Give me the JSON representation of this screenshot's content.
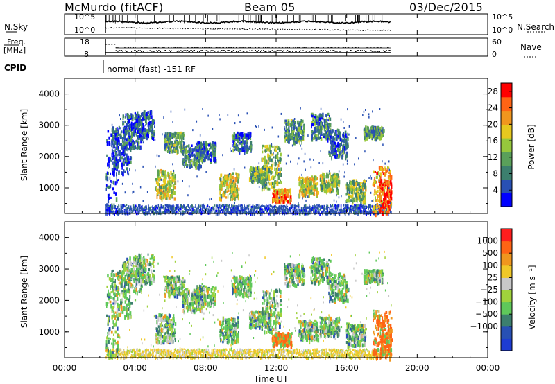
{
  "header": {
    "station": "McMurdo (fitACF)",
    "beam": "Beam 05",
    "date": "03/Dec/2015"
  },
  "status_panels": {
    "nsky_label": "N.Sky",
    "nsearch_label": "N.Search",
    "freq_label": "Freq.",
    "freq_unit": "[MHz]",
    "nave_label": "Nave",
    "cpid_label": "CPID",
    "cpid_text": "normal (fast) -151 RF",
    "noise_ticks_left": [
      "10^5",
      "10^0"
    ],
    "noise_ticks_right": [
      "10^5",
      "10^0"
    ],
    "freq_ticks": [
      "18",
      "8"
    ],
    "nave_ticks": [
      "60",
      "0"
    ]
  },
  "x_axis": {
    "label": "Time UT",
    "ticks": [
      "00:00",
      "04:00",
      "08:00",
      "12:00",
      "16:00",
      "20:00",
      "00:00"
    ]
  },
  "chart_data": [
    {
      "type": "heatmap",
      "title": "",
      "xlabel": "Time UT",
      "ylabel": "Slant Range [km]",
      "x_range_hours": [
        0,
        24
      ],
      "data_x_range_hours": [
        2.33,
        18.5
      ],
      "ylim": [
        180,
        4500
      ],
      "yticks": [
        "1000",
        "2000",
        "3000",
        "4000"
      ],
      "colorbar": {
        "label": "Power [dB]",
        "ticks": [
          "4",
          "8",
          "12",
          "16",
          "20",
          "24",
          "28"
        ],
        "range": [
          0,
          30
        ],
        "colors": [
          "#0000ff",
          "#2850b4",
          "#3c7f6e",
          "#5aa05a",
          "#96c83c",
          "#e6c81e",
          "#f0961e",
          "#ff6414",
          "#ff0000"
        ]
      },
      "echo_regions": [
        {
          "t": 2.5,
          "r": [
            250,
            2900
          ],
          "level": 0.15
        },
        {
          "t": 3.2,
          "r": [
            1500,
            3000
          ],
          "level": 0.15
        },
        {
          "t": 3.8,
          "r": [
            2300,
            3400
          ],
          "level": 0.2
        },
        {
          "t": 4.5,
          "r": [
            2600,
            3500
          ],
          "level": 0.2
        },
        {
          "t": 5.7,
          "r": [
            700,
            1600
          ],
          "level": 0.55
        },
        {
          "t": 6.2,
          "r": [
            2200,
            2800
          ],
          "level": 0.35
        },
        {
          "t": 7.2,
          "r": [
            1700,
            2400
          ],
          "level": 0.3
        },
        {
          "t": 8.0,
          "r": [
            1900,
            2500
          ],
          "level": 0.25
        },
        {
          "t": 9.3,
          "r": [
            700,
            1500
          ],
          "level": 0.55
        },
        {
          "t": 10.0,
          "r": [
            2200,
            2800
          ],
          "level": 0.25
        },
        {
          "t": 11.0,
          "r": [
            1200,
            1700
          ],
          "level": 0.4
        },
        {
          "t": 11.7,
          "r": [
            1000,
            2400
          ],
          "level": 0.45
        },
        {
          "t": 12.3,
          "r": [
            600,
            1000
          ],
          "level": 0.75
        },
        {
          "t": 13.0,
          "r": [
            2500,
            3200
          ],
          "level": 0.35
        },
        {
          "t": 13.8,
          "r": [
            800,
            1400
          ],
          "level": 0.55
        },
        {
          "t": 14.5,
          "r": [
            2600,
            3400
          ],
          "level": 0.3
        },
        {
          "t": 15.0,
          "r": [
            900,
            1500
          ],
          "level": 0.5
        },
        {
          "t": 15.5,
          "r": [
            2000,
            2900
          ],
          "level": 0.25
        },
        {
          "t": 16.5,
          "r": [
            600,
            1300
          ],
          "level": 0.45
        },
        {
          "t": 17.5,
          "r": [
            2600,
            3000
          ],
          "level": 0.35
        },
        {
          "t": 18.0,
          "r": [
            200,
            1700
          ],
          "level": 0.7
        },
        {
          "t": 18.4,
          "r": [
            300,
            1300
          ],
          "level": 0.9
        }
      ]
    },
    {
      "type": "heatmap",
      "title": "",
      "xlabel": "Time UT",
      "ylabel": "Slant Range [km]",
      "x_range_hours": [
        0,
        24
      ],
      "data_x_range_hours": [
        2.33,
        18.5
      ],
      "ylim": [
        180,
        4500
      ],
      "yticks": [
        "1000",
        "2000",
        "3000",
        "4000"
      ],
      "colorbar": {
        "label": "Velocity [m s⁻¹]",
        "ticks": [
          "1000",
          "500",
          "100",
          "25",
          "−25",
          "−100",
          "−500",
          "−1000"
        ],
        "colors": [
          "#1e3cd2",
          "#2850b4",
          "#3c7f6e",
          "#5fc85a",
          "#a0d23c",
          "#c8c8c8",
          "#f0c828",
          "#f0961e",
          "#ff6414",
          "#ff1e1e"
        ]
      }
    }
  ]
}
